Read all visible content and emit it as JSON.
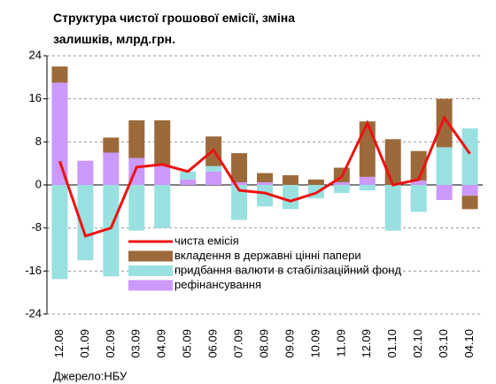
{
  "chart_data": {
    "type": "bar",
    "title": "Структура чистої грошової емісії, зміна залишків, млрд.грн.",
    "source": "Джерело:НБУ",
    "categories": [
      "12.08",
      "01.09",
      "02.09",
      "03.09",
      "04.09",
      "05.09",
      "06.09",
      "07.09",
      "08.09",
      "09.09",
      "10.09",
      "11.09",
      "12.09",
      "01.10",
      "02.10",
      "03.10",
      "04.10"
    ],
    "series": [
      {
        "name": "рефінансування",
        "color": "#cc99ff",
        "values": [
          19,
          4.5,
          6,
          5,
          3.6,
          1,
          2.5,
          0.5,
          0.5,
          0,
          0,
          0.5,
          1.5,
          0,
          0.8,
          -2.8,
          -2
        ]
      },
      {
        "name": "придбання валюти в стабілізаційний фонд",
        "color": "#99e0e0",
        "values": [
          -17.5,
          -14,
          -17,
          -8.5,
          -8,
          1.5,
          1,
          -6.5,
          -4,
          -4.5,
          -2.5,
          -1.5,
          -1,
          -8.5,
          -5,
          7,
          10.5
        ]
      },
      {
        "name": "вкладення в державні цінні папери",
        "color": "#9c6a3a",
        "values": [
          3,
          0,
          2.8,
          7,
          8.4,
          0,
          5.5,
          5.4,
          1.7,
          1.8,
          1,
          2.7,
          10.3,
          8.5,
          5.5,
          9,
          -2.5
        ]
      },
      {
        "name": "чиста емісія",
        "type": "line",
        "color": "#ee1111",
        "values": [
          4.4,
          -9.5,
          -8,
          3.3,
          3.8,
          2.5,
          6.5,
          -1,
          -1.5,
          -3,
          -1.5,
          1.5,
          11.5,
          0,
          1,
          12.5,
          5.8
        ]
      }
    ],
    "ylim": [
      -24,
      24
    ],
    "yticks": [
      -24,
      -16,
      -8,
      0,
      8,
      16,
      24
    ],
    "grid": true
  }
}
